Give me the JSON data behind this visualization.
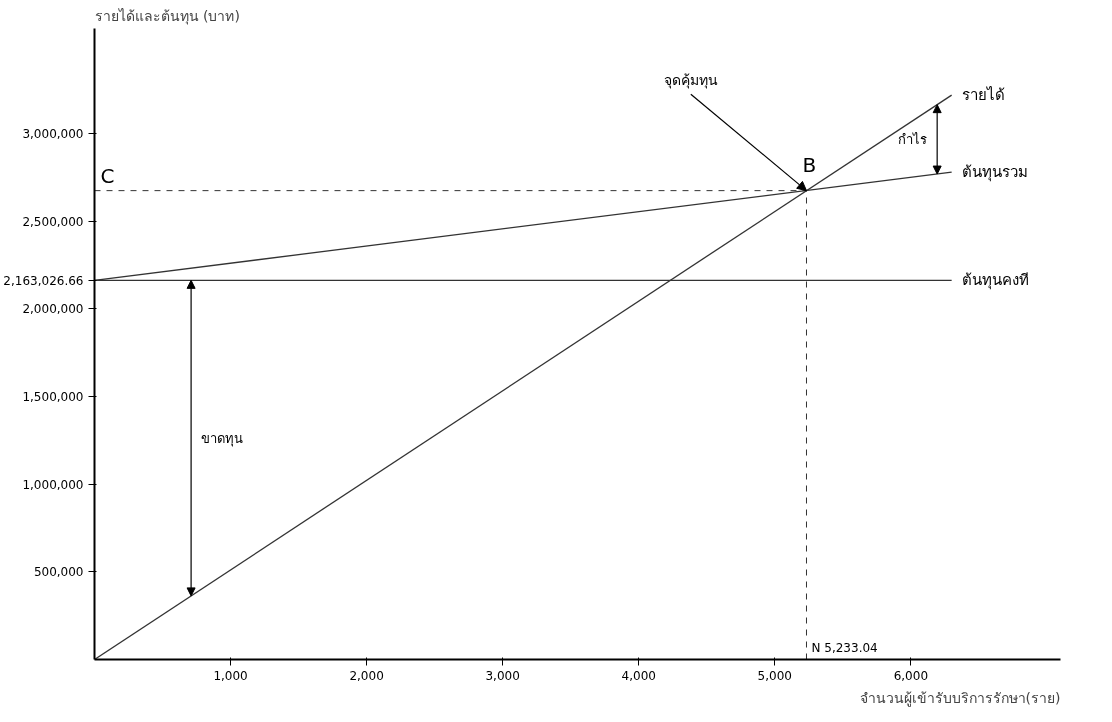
{
  "chart_data": {
    "type": "line",
    "xlabel": "จำนวนผู้เข้ารับบริการรักษา(ราย)",
    "ylabel": "รายได้และต้นทุน (บาท)",
    "xlim": [
      0,
      7100
    ],
    "ylim": [
      0,
      3600000
    ],
    "xticks": [
      {
        "value": 1000,
        "label": "1,000"
      },
      {
        "value": 2000,
        "label": "2,000"
      },
      {
        "value": 3000,
        "label": "3,000"
      },
      {
        "value": 4000,
        "label": "4,000"
      },
      {
        "value": 5000,
        "label": "5,000"
      },
      {
        "value": 6000,
        "label": "6,000"
      }
    ],
    "yticks": [
      {
        "value": 500000,
        "label": "500,000"
      },
      {
        "value": 1000000,
        "label": "1,000,000"
      },
      {
        "value": 1500000,
        "label": "1,500,000"
      },
      {
        "value": 2000000,
        "label": "2,000,000"
      },
      {
        "value": 2163026.66,
        "label": "2,163,026.66"
      },
      {
        "value": 2500000,
        "label": "2,500,000"
      },
      {
        "value": 3000000,
        "label": "3,000,000"
      }
    ],
    "x": [
      0,
      6300
    ],
    "grid": false,
    "marker": "none",
    "line_style": "solid",
    "series": [
      {
        "name": "รายได้",
        "color": "#333333",
        "values": [
          0,
          3220000
        ]
      },
      {
        "name": "ต้นทุนรวม",
        "color": "#333333",
        "values": [
          2163026.66,
          2780000
        ]
      },
      {
        "name": "ต้นทุนคงที",
        "color": "#333333",
        "values": [
          2163026.66,
          2163026.66
        ]
      }
    ],
    "ref_lines": [
      {
        "axis": "y",
        "value": 2675000,
        "label": "C",
        "line_style": "dashed",
        "color": "#333333"
      },
      {
        "axis": "x",
        "value": 5233.04,
        "label": "N 5,233.04",
        "line_style": "dashed",
        "color": "#333333"
      }
    ],
    "annotations": [
      {
        "text": "จุดคุ้มทุน",
        "x": 5233.04,
        "y": 2675000
      },
      {
        "text": "B",
        "x": 5233.04,
        "y": 2675000
      },
      "กำไร",
      "ขาดทุน"
    ]
  }
}
